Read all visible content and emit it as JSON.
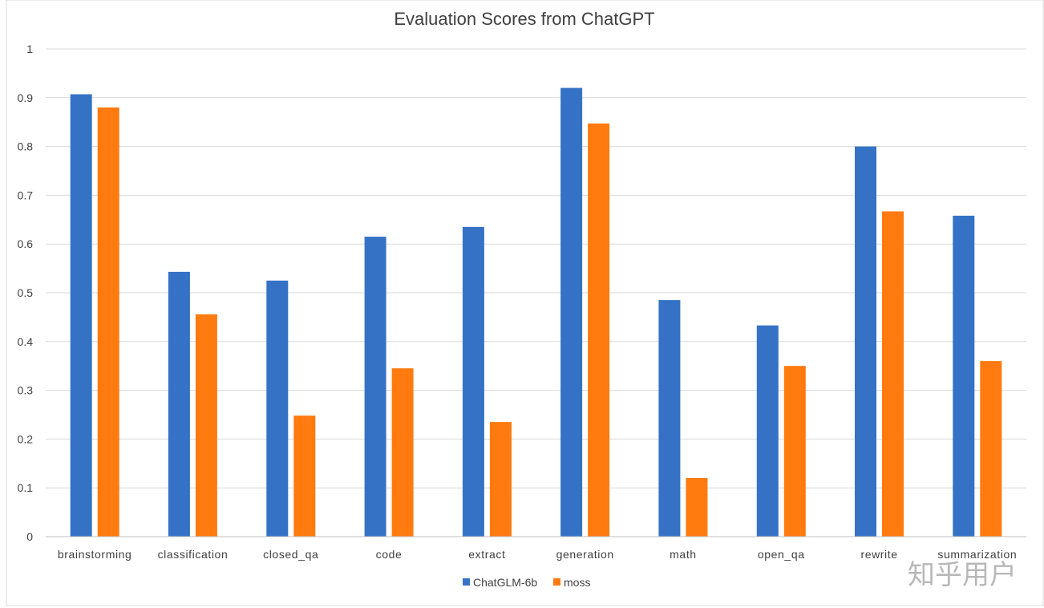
{
  "watermark_text": "知乎用户",
  "colors": {
    "chatglm": "#3572C6",
    "moss": "#FF7A0F",
    "grid": "#D9D9D9",
    "axis": "#BFBFBF"
  },
  "chart_data": {
    "type": "bar",
    "title": "Evaluation Scores from ChatGPT",
    "xlabel": "",
    "ylabel": "",
    "ylim": [
      0,
      1
    ],
    "yticks": [
      "0",
      "0.1",
      "0.2",
      "0.3",
      "0.4",
      "0.5",
      "0.6",
      "0.7",
      "0.8",
      "0.9",
      "1"
    ],
    "grid": true,
    "legend": "bottom",
    "categories": [
      "brainstorming",
      "classification",
      "closed_qa",
      "code",
      "extract",
      "generation",
      "math",
      "open_qa",
      "rewrite",
      "summarization"
    ],
    "series": [
      {
        "name": "ChatGLM-6b",
        "color": "#3572C6",
        "values": [
          0.907,
          0.543,
          0.525,
          0.615,
          0.635,
          0.92,
          0.485,
          0.433,
          0.8,
          0.658
        ]
      },
      {
        "name": "moss",
        "color": "#FF7A0F",
        "values": [
          0.88,
          0.456,
          0.248,
          0.345,
          0.235,
          0.847,
          0.12,
          0.35,
          0.667,
          0.36
        ]
      }
    ]
  }
}
